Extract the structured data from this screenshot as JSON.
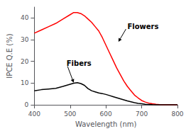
{
  "chart_data": {
    "type": "line",
    "xlabel": "Wavelength (nm)",
    "ylabel": "IPCE Q.E (%)",
    "x": [
      400,
      420,
      440,
      460,
      480,
      500,
      510,
      520,
      530,
      540,
      550,
      560,
      570,
      580,
      590,
      600,
      610,
      620,
      630,
      640,
      650,
      660,
      670,
      680,
      690,
      700,
      710,
      720,
      730,
      740,
      750,
      760,
      770,
      780,
      790,
      800
    ],
    "series": [
      {
        "color": "#ff0000",
        "values": [
          33,
          34.5,
          36,
          37.5,
          39.5,
          41.5,
          42.5,
          42.5,
          42,
          41,
          39.5,
          38,
          36,
          34,
          31,
          27.5,
          24,
          20.5,
          17,
          14,
          11,
          8.5,
          6.5,
          4.5,
          3.2,
          2.0,
          1.3,
          0.8,
          0.5,
          0.3,
          0.15,
          0.05,
          0.0,
          0.0,
          0.0,
          0.0
        ]
      },
      {
        "color": "#000000",
        "values": [
          6.5,
          7.0,
          7.3,
          7.6,
          8.5,
          9.5,
          10.0,
          10.2,
          9.8,
          9.0,
          7.5,
          6.5,
          6.0,
          5.5,
          5.2,
          4.8,
          4.3,
          3.8,
          3.3,
          2.8,
          2.3,
          1.8,
          1.4,
          1.0,
          0.7,
          0.5,
          0.3,
          0.2,
          0.1,
          0.05,
          0.0,
          0.0,
          0.0,
          0.0,
          0.0,
          0.0
        ]
      }
    ],
    "xlim": [
      400,
      800
    ],
    "ylim": [
      0,
      45
    ],
    "xticks": [
      400,
      500,
      600,
      700,
      800
    ],
    "yticks": [
      0,
      10,
      20,
      30,
      40
    ],
    "grid": false,
    "annotations": [
      {
        "text": "Flowers",
        "x": 660,
        "y": 36,
        "arrow_x": 635,
        "arrow_y": 29
      },
      {
        "text": "Fibers",
        "x": 490,
        "y": 19,
        "arrow_x": 510,
        "arrow_y": 10.2
      }
    ]
  }
}
